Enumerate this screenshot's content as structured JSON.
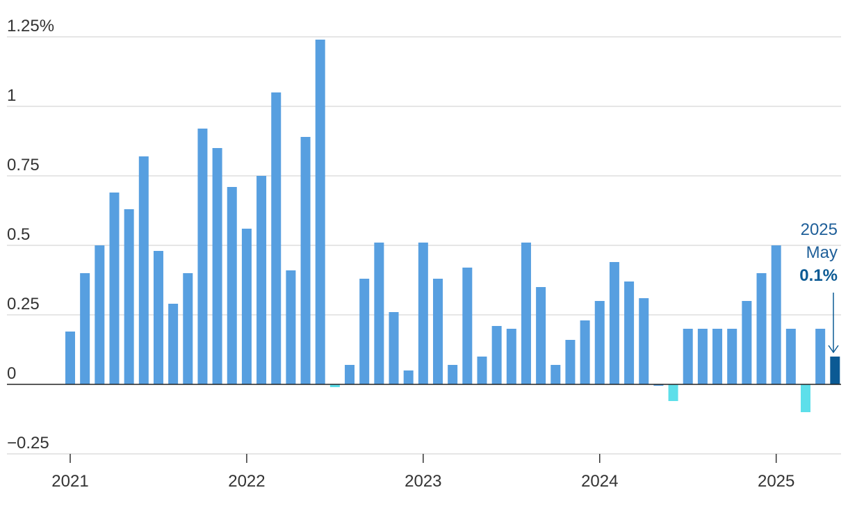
{
  "chart_data": {
    "type": "bar",
    "title": "",
    "xlabel": "",
    "ylabel": "",
    "ylim": [
      -0.25,
      1.25
    ],
    "y_tick_values": [
      -0.25,
      0,
      0.25,
      0.5,
      0.75,
      1,
      1.25
    ],
    "y_tick_labels": [
      "−0.25",
      "0",
      "0.25",
      "0.5",
      "0.75",
      "1",
      "1.25%"
    ],
    "x_tick_labels": [
      "2021",
      "2022",
      "2023",
      "2024",
      "2025"
    ],
    "x_tick_indices": [
      0,
      12,
      24,
      36,
      48
    ],
    "grid": true,
    "categories": [
      "2021-01",
      "2021-02",
      "2021-03",
      "2021-04",
      "2021-05",
      "2021-06",
      "2021-07",
      "2021-08",
      "2021-09",
      "2021-10",
      "2021-11",
      "2021-12",
      "2022-01",
      "2022-02",
      "2022-03",
      "2022-04",
      "2022-05",
      "2022-06",
      "2022-07",
      "2022-08",
      "2022-09",
      "2022-10",
      "2022-11",
      "2022-12",
      "2023-01",
      "2023-02",
      "2023-03",
      "2023-04",
      "2023-05",
      "2023-06",
      "2023-07",
      "2023-08",
      "2023-09",
      "2023-10",
      "2023-11",
      "2023-12",
      "2024-01",
      "2024-02",
      "2024-03",
      "2024-04",
      "2024-05",
      "2024-06",
      "2024-07",
      "2024-08",
      "2024-09",
      "2024-10",
      "2024-11",
      "2024-12",
      "2025-01",
      "2025-02",
      "2025-03",
      "2025-04",
      "2025-05"
    ],
    "values": [
      0.19,
      0.4,
      0.5,
      0.69,
      0.63,
      0.82,
      0.48,
      0.29,
      0.4,
      0.92,
      0.85,
      0.71,
      0.56,
      0.75,
      1.05,
      0.41,
      0.89,
      1.24,
      -0.01,
      0.07,
      0.38,
      0.51,
      0.26,
      0.05,
      0.51,
      0.38,
      0.07,
      0.42,
      0.1,
      0.21,
      0.2,
      0.51,
      0.35,
      0.07,
      0.16,
      0.23,
      0.3,
      0.44,
      0.37,
      0.31,
      0.0,
      -0.06,
      0.2,
      0.2,
      0.2,
      0.2,
      0.3,
      0.4,
      0.5,
      0.2,
      -0.1,
      0.2,
      0.1
    ],
    "colors": {
      "positive": "#579fe0",
      "negative": "#5ddfea",
      "highlight": "#0b5a94",
      "zero_line": "#222222",
      "grid": "#cccccc"
    },
    "annotation": {
      "year": "2025",
      "month": "May",
      "value": "0.1%"
    }
  }
}
